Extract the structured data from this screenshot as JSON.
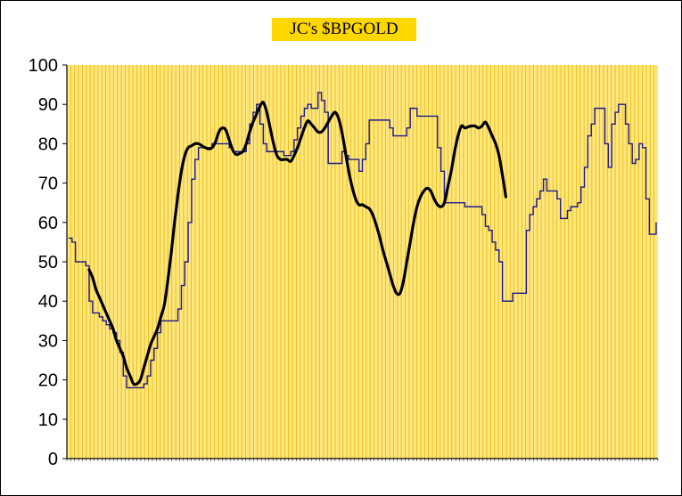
{
  "chart_data": {
    "type": "line",
    "title": "JC's $BPGOLD",
    "xlabel": "",
    "ylabel": "",
    "ylim": [
      0,
      100
    ],
    "yticks": [
      "0",
      "10",
      "20",
      "30",
      "40",
      "50",
      "60",
      "70",
      "80",
      "90",
      "100"
    ],
    "grid": "vertical",
    "legend": "none",
    "colors": {
      "title_background": "#ffd700",
      "plot_background": "#ffe680",
      "gridlines": "#e6b800",
      "raw_series": "#1a1a8c",
      "smoothed_series": "#000000"
    },
    "x_tick_count": 152,
    "series": [
      {
        "key": "bpgold",
        "style": "thin-step",
        "values": [
          56,
          55,
          50,
          50,
          50,
          49,
          40,
          37,
          37,
          36,
          35,
          34,
          33,
          32,
          30,
          27,
          21,
          18,
          18,
          18,
          18,
          18,
          19,
          21,
          25,
          28,
          32,
          35,
          35,
          35,
          35,
          35,
          38,
          44,
          50,
          60,
          71,
          76,
          79,
          79,
          79,
          79,
          80,
          80,
          80,
          80,
          80,
          79,
          78,
          78,
          78,
          78,
          80,
          85,
          88,
          90,
          85,
          80,
          78,
          78,
          78,
          78,
          78,
          77,
          77,
          78,
          81,
          84,
          87,
          89,
          90,
          89,
          89,
          93,
          91,
          88,
          75,
          75,
          75,
          75,
          78,
          77,
          76,
          76,
          76,
          73,
          76,
          80,
          86,
          86,
          86,
          86,
          86,
          86,
          84,
          82,
          82,
          82,
          82,
          84,
          89,
          89,
          87,
          87,
          87,
          87,
          87,
          87,
          79,
          73,
          65,
          65,
          65,
          65,
          65,
          65,
          64,
          64,
          64,
          64,
          64,
          62,
          59,
          58,
          55,
          53,
          50,
          40,
          40,
          40,
          42,
          42,
          42,
          42,
          58,
          62,
          64,
          66,
          68,
          71,
          68,
          68,
          68,
          66,
          61,
          61,
          63,
          64,
          64,
          65,
          69,
          74,
          82,
          85,
          89,
          89,
          89,
          80,
          74,
          85,
          88,
          90,
          90,
          85,
          80,
          75,
          76,
          80,
          79,
          66,
          57,
          57,
          60
        ]
      },
      {
        "key": "bpgold_smoothed",
        "style": "thick-smooth",
        "start_index": 6,
        "values": [
          48,
          46,
          43,
          41,
          39,
          37,
          35,
          33,
          30,
          28,
          26,
          23,
          21,
          19,
          19,
          20,
          23,
          26,
          29,
          31,
          33,
          36,
          39,
          45,
          52,
          60,
          67,
          73,
          77,
          79,
          79.5,
          80,
          80,
          79.5,
          79,
          78.7,
          79,
          80.5,
          83,
          84,
          83.5,
          81,
          78.5,
          77.3,
          77.5,
          78,
          80,
          83,
          85.5,
          87.5,
          89.5,
          90.5,
          88,
          84,
          80,
          77,
          76,
          76,
          76,
          75.5,
          77,
          79,
          81.5,
          84,
          85.8,
          85,
          84,
          83,
          83,
          84,
          85.5,
          87,
          88,
          86.5,
          83,
          78,
          73,
          69,
          66,
          64.5,
          64.5,
          64,
          63.5,
          62,
          59.5,
          56.5,
          53,
          50,
          47,
          44,
          42,
          42,
          45,
          50,
          55,
          60,
          64,
          66.5,
          68,
          68.7,
          68,
          66,
          64.5,
          64,
          65,
          69,
          73,
          78,
          82,
          84.5,
          84,
          84.3,
          84.5,
          84.5,
          84,
          84.5,
          85.5,
          84,
          82,
          80,
          77,
          72,
          66.5
        ]
      }
    ]
  }
}
